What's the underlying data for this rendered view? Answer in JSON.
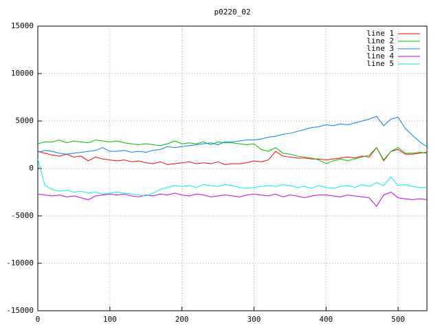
{
  "chart_data": {
    "type": "line",
    "title": "p0220_02",
    "x": [
      0,
      10,
      20,
      30,
      40,
      50,
      60,
      70,
      80,
      90,
      100,
      110,
      120,
      130,
      140,
      150,
      160,
      170,
      180,
      190,
      200,
      210,
      220,
      230,
      240,
      250,
      260,
      270,
      280,
      290,
      300,
      310,
      320,
      330,
      340,
      350,
      360,
      370,
      380,
      390,
      400,
      410,
      420,
      430,
      440,
      450,
      460,
      470,
      480,
      490,
      500,
      510,
      520,
      530,
      540
    ],
    "series": [
      {
        "name": "line 1",
        "color": "#ff0000",
        "values": [
          1800,
          1600,
          1400,
          1300,
          1500,
          1200,
          1300,
          800,
          1200,
          1000,
          900,
          800,
          900,
          700,
          800,
          600,
          500,
          700,
          400,
          500,
          600,
          700,
          500,
          600,
          500,
          700,
          400,
          500,
          500,
          600,
          800,
          700,
          900,
          1800,
          1300,
          1200,
          1100,
          1100,
          1000,
          1000,
          900,
          1000,
          1100,
          1200,
          1100,
          1300,
          1200,
          2200,
          800,
          1800,
          2000,
          1500,
          1500,
          1600,
          1700
        ]
      },
      {
        "name": "line 2",
        "color": "#00c000",
        "values": [
          2600,
          2800,
          2800,
          3000,
          2700,
          2900,
          2800,
          2700,
          3000,
          2900,
          2800,
          2900,
          2700,
          2600,
          2500,
          2600,
          2500,
          2400,
          2600,
          2900,
          2600,
          2700,
          2600,
          2800,
          2500,
          2800,
          2700,
          2700,
          2600,
          2500,
          2600,
          2000,
          1800,
          2200,
          1600,
          1500,
          1300,
          1200,
          1100,
          900,
          500,
          800,
          1000,
          800,
          1000,
          1200,
          1400,
          2200,
          900,
          1800,
          2200,
          1600,
          1600,
          1700,
          1600
        ]
      },
      {
        "name": "line 3",
        "color": "#0080ff",
        "values": [
          1700,
          1900,
          1800,
          1600,
          1500,
          1600,
          1700,
          1800,
          1900,
          2200,
          1800,
          1800,
          1900,
          1700,
          1800,
          1700,
          1900,
          2000,
          2300,
          2200,
          2300,
          2400,
          2500,
          2600,
          2700,
          2500,
          2800,
          2800,
          2900,
          3000,
          3000,
          3100,
          3300,
          3400,
          3600,
          3700,
          3900,
          4100,
          4300,
          4400,
          4600,
          4500,
          4700,
          4600,
          4800,
          5000,
          5200,
          5500,
          4500,
          5200,
          5400,
          4200,
          3500,
          2800,
          2300
        ]
      },
      {
        "name": "line 4",
        "color": "#c000ff",
        "values": [
          -2700,
          -2800,
          -2900,
          -2800,
          -3000,
          -2900,
          -3100,
          -3300,
          -2900,
          -2800,
          -2700,
          -2800,
          -2700,
          -2900,
          -3000,
          -2800,
          -2900,
          -2700,
          -2800,
          -2600,
          -2800,
          -2900,
          -2700,
          -2800,
          -3000,
          -2900,
          -2800,
          -2900,
          -3000,
          -2800,
          -2700,
          -2800,
          -2900,
          -2700,
          -3000,
          -2800,
          -2900,
          -3100,
          -2900,
          -2800,
          -2800,
          -2900,
          -3000,
          -2800,
          -2900,
          -3000,
          -3100,
          -4000,
          -2800,
          -2500,
          -3100,
          -3200,
          -3300,
          -3200,
          -3300
        ]
      },
      {
        "name": "line 5",
        "color": "#00eeee",
        "values": [
          1000,
          -1800,
          -2200,
          -2400,
          -2300,
          -2500,
          -2400,
          -2600,
          -2500,
          -2700,
          -2600,
          -2500,
          -2600,
          -2700,
          -2800,
          -2900,
          -2600,
          -2200,
          -2000,
          -1800,
          -1900,
          -1800,
          -2000,
          -1700,
          -1800,
          -1900,
          -1700,
          -1800,
          -2000,
          -2100,
          -2000,
          -1900,
          -1800,
          -1900,
          -1700,
          -1800,
          -2000,
          -1900,
          -2100,
          -1800,
          -2000,
          -2100,
          -1900,
          -1800,
          -2000,
          -1700,
          -1900,
          -1500,
          -1800,
          -900,
          -1800,
          -1700,
          -1900,
          -2000,
          -2000
        ]
      }
    ],
    "xlim": [
      0,
      540
    ],
    "ylim": [
      -15000,
      15000
    ],
    "xticks": [
      0,
      100,
      200,
      300,
      400,
      500
    ],
    "yticks": [
      -15000,
      -10000,
      -5000,
      0,
      5000,
      10000,
      15000
    ],
    "grid": true,
    "legend": "top-right"
  }
}
